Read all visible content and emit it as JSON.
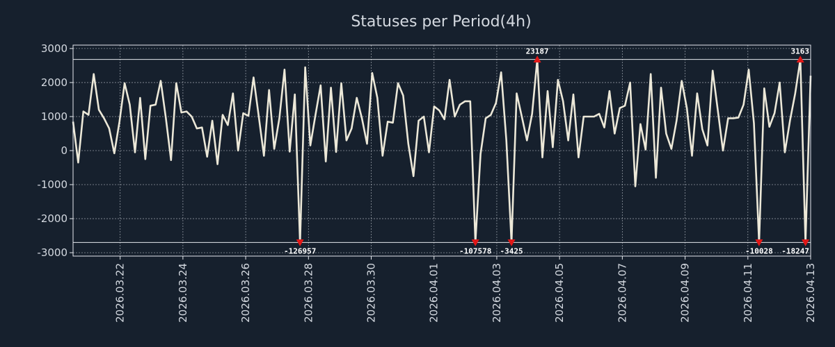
{
  "chart_data": {
    "type": "line",
    "title": "Statuses per Period(4h)",
    "xlabel": "",
    "ylabel": "",
    "ylim": [
      -3100,
      3100
    ],
    "clip_range": [
      -2700,
      2680
    ],
    "yticks": [
      3000,
      2000,
      1000,
      0,
      -1000,
      -2000,
      -3000
    ],
    "ytick_labels": [
      "3000",
      "2000",
      "1000",
      "0",
      "-1000",
      "-2000",
      "-3000"
    ],
    "xdate_start": "2026-03-20T12:00",
    "xdate_end": "2026-04-13T00:00",
    "xticks": [
      "2026-03-22",
      "2026-03-24",
      "2026-03-26",
      "2026-03-28",
      "2026-03-30",
      "2026-04-01",
      "2026-04-03",
      "2026-04-05",
      "2026-04-07",
      "2026-04-09",
      "2026-04-11",
      "2026-04-13"
    ],
    "xtick_labels": [
      "2026.03.22",
      "2026.03.24",
      "2026.03.26",
      "2026.03.28",
      "2026.03.30",
      "2026.04.01",
      "2026.04.03",
      "2026.04.05",
      "2026.04.07",
      "2026.04.09",
      "2026.04.11",
      "2026.04.13"
    ],
    "series": [
      {
        "name": "statuses",
        "color": "#ece8d8",
        "values": [
          850,
          -350,
          1150,
          1050,
          2250,
          1200,
          950,
          650,
          -80,
          850,
          1980,
          1350,
          -50,
          1550,
          -250,
          1320,
          1350,
          2050,
          950,
          -280,
          1980,
          1120,
          1150,
          1000,
          650,
          680,
          -180,
          880,
          -400,
          1050,
          750,
          1680,
          0,
          1100,
          1020,
          2150,
          1000,
          -150,
          1780,
          50,
          950,
          2380,
          -30,
          1650,
          -2700,
          2450,
          150,
          1050,
          1920,
          -320,
          1850,
          -40,
          1980,
          300,
          650,
          1550,
          950,
          200,
          2280,
          1550,
          -150,
          850,
          820,
          1980,
          1620,
          200,
          -750,
          880,
          1000,
          -50,
          1300,
          1180,
          920,
          2080,
          1000,
          1350,
          1450,
          1450,
          -2700,
          -100,
          950,
          1050,
          1400,
          2300,
          300,
          -2700,
          1680,
          1000,
          300,
          1080,
          2680,
          -200,
          1750,
          100,
          2080,
          1450,
          300,
          1650,
          -200,
          1000,
          1000,
          1000,
          1080,
          680,
          1750,
          500,
          1250,
          1320,
          2000,
          -1050,
          780,
          30,
          2250,
          -800,
          1850,
          500,
          50,
          880,
          2050,
          1250,
          -150,
          1680,
          630,
          150,
          2350,
          1180,
          0,
          950,
          950,
          970,
          1350,
          2380,
          800,
          -2700,
          1830,
          700,
          1100,
          2000,
          -50,
          880,
          1680,
          2680,
          -2700,
          2200
        ]
      }
    ],
    "annotations": [
      {
        "index": 44,
        "label": "-126957",
        "kind": "min",
        "color": "#e01818"
      },
      {
        "index": 78,
        "label": "-107578",
        "kind": "min",
        "color": "#e01818"
      },
      {
        "index": 85,
        "label": "-3425",
        "kind": "min",
        "color": "#e01818"
      },
      {
        "index": 90,
        "label": "23187",
        "kind": "max",
        "color": "#e01818"
      },
      {
        "index": 133,
        "label": "-10028",
        "kind": "min",
        "color": "#e01818"
      },
      {
        "index": 141,
        "label": "3163",
        "kind": "max",
        "color": "#e01818"
      },
      {
        "index": 142,
        "label": "-18247",
        "kind": "min",
        "color": "#e01818"
      }
    ]
  }
}
